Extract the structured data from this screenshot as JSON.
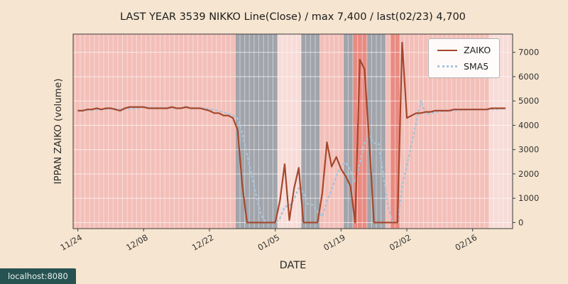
{
  "status_badge": {
    "text": "localhost:8080"
  },
  "colors": {
    "figure_background": "#f6e5d0",
    "plot_base": "#faf4f1",
    "zaiko_line": "#a5472d",
    "sma5_line": "#a9c3d9",
    "spine": "#3a3a3a",
    "tick_label": "#333333",
    "bands": {
      "pink": "rgba(235,138,128,0.50)",
      "pinklight": "rgba(235,138,128,0.22)",
      "red": "rgba(226,98,88,0.72)",
      "gray": "rgba(144,149,157,0.85)"
    }
  },
  "chart_data": {
    "type": "line",
    "title": "LAST YEAR 3539 NIKKO Line(Close) / max 7,400 / last(02/23) 4,700",
    "xlabel": "DATE",
    "ylabel": "IPPAN ZAIKO (volume)",
    "x_start_date": "11/24",
    "x_end_date": "02/23",
    "x_frequency": "daily",
    "x_tick_labels": [
      "11/24",
      "12/08",
      "12/22",
      "01/05",
      "01/19",
      "02/02",
      "02/16"
    ],
    "x_tick_indices": [
      0,
      14,
      28,
      42,
      56,
      70,
      84
    ],
    "y_ticks": [
      0,
      1000,
      2000,
      3000,
      4000,
      5000,
      6000,
      7000
    ],
    "ylim": [
      -250,
      7750
    ],
    "xlim_index": [
      -1,
      92.5
    ],
    "grid": "horizontal-white",
    "legend_position": "upper right",
    "max_value": 7400,
    "last_value": 4700,
    "last_date": "02/23",
    "series": [
      {
        "name": "ZAIKO",
        "style": "solid",
        "color": "#a5472d",
        "values": [
          4600,
          4600,
          4650,
          4650,
          4700,
          4650,
          4700,
          4700,
          4650,
          4600,
          4700,
          4750,
          4750,
          4750,
          4750,
          4700,
          4700,
          4700,
          4700,
          4700,
          4750,
          4700,
          4700,
          4750,
          4700,
          4700,
          4700,
          4650,
          4600,
          4500,
          4500,
          4400,
          4400,
          4300,
          3800,
          1500,
          0,
          0,
          0,
          0,
          0,
          0,
          0,
          900,
          2400,
          100,
          1400,
          2250,
          0,
          0,
          0,
          0,
          1200,
          3300,
          2300,
          2700,
          2200,
          1900,
          1500,
          0,
          6700,
          6300,
          3300,
          0,
          0,
          0,
          0,
          0,
          0,
          7400,
          4300,
          4400,
          4500,
          4500,
          4550,
          4550,
          4600,
          4600,
          4600,
          4600,
          4650,
          4650,
          4650,
          4650,
          4650,
          4650,
          4650,
          4650,
          4700,
          4700,
          4700,
          4700
        ]
      },
      {
        "name": "SMA5",
        "style": "dotted",
        "color": "#a9c3d9",
        "derived": "5-day moving average of ZAIKO"
      }
    ],
    "background_bands": [
      {
        "start": -1,
        "end": 33.5,
        "color": "pink"
      },
      {
        "start": 33.5,
        "end": 42.5,
        "color": "gray"
      },
      {
        "start": 42.5,
        "end": 47.5,
        "color": "pinklight"
      },
      {
        "start": 47.5,
        "end": 51.5,
        "color": "gray"
      },
      {
        "start": 51.5,
        "end": 56.5,
        "color": "pink"
      },
      {
        "start": 56.5,
        "end": 58.5,
        "color": "gray"
      },
      {
        "start": 58.5,
        "end": 61.5,
        "color": "red"
      },
      {
        "start": 61.5,
        "end": 65.5,
        "color": "gray"
      },
      {
        "start": 65.5,
        "end": 66.5,
        "color": "pink"
      },
      {
        "start": 66.5,
        "end": 68.5,
        "color": "red"
      },
      {
        "start": 68.5,
        "end": 87.5,
        "color": "pink"
      },
      {
        "start": 87.5,
        "end": 92.5,
        "color": "pinklight"
      }
    ]
  }
}
